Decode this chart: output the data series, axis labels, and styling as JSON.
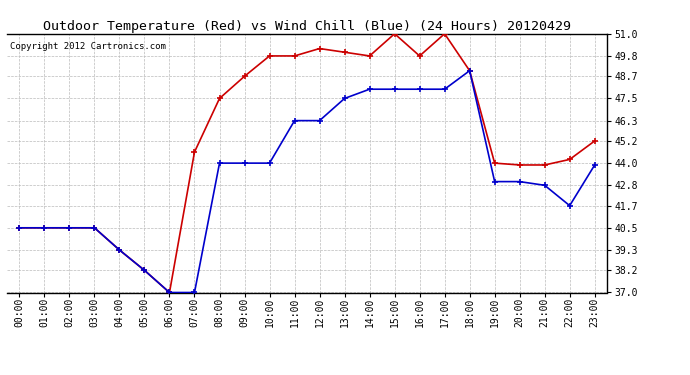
{
  "title": "Outdoor Temperature (Red) vs Wind Chill (Blue) (24 Hours) 20120429",
  "copyright": "Copyright 2012 Cartronics.com",
  "x_labels": [
    "00:00",
    "01:00",
    "02:00",
    "03:00",
    "04:00",
    "05:00",
    "06:00",
    "07:00",
    "08:00",
    "09:00",
    "10:00",
    "11:00",
    "12:00",
    "13:00",
    "14:00",
    "15:00",
    "16:00",
    "17:00",
    "18:00",
    "19:00",
    "20:00",
    "21:00",
    "22:00",
    "23:00"
  ],
  "temp_red": [
    40.5,
    40.5,
    40.5,
    40.5,
    39.3,
    38.2,
    37.0,
    44.6,
    47.5,
    48.7,
    49.8,
    49.8,
    50.2,
    50.0,
    49.8,
    51.0,
    49.8,
    51.0,
    49.0,
    44.0,
    43.9,
    43.9,
    44.2,
    45.2
  ],
  "wind_chill_blue": [
    40.5,
    40.5,
    40.5,
    40.5,
    39.3,
    38.2,
    37.0,
    37.0,
    44.0,
    44.0,
    44.0,
    46.3,
    46.3,
    47.5,
    48.0,
    48.0,
    48.0,
    48.0,
    49.0,
    43.0,
    43.0,
    42.8,
    41.7,
    43.9
  ],
  "ylim": [
    37.0,
    51.0
  ],
  "yticks": [
    37.0,
    38.2,
    39.3,
    40.5,
    41.7,
    42.8,
    44.0,
    45.2,
    46.3,
    47.5,
    48.7,
    49.8,
    51.0
  ],
  "red_color": "#cc0000",
  "blue_color": "#0000cc",
  "bg_color": "#ffffff",
  "grid_color": "#bbbbbb",
  "title_fontsize": 9.5,
  "tick_fontsize": 7,
  "copyright_fontsize": 6.5
}
